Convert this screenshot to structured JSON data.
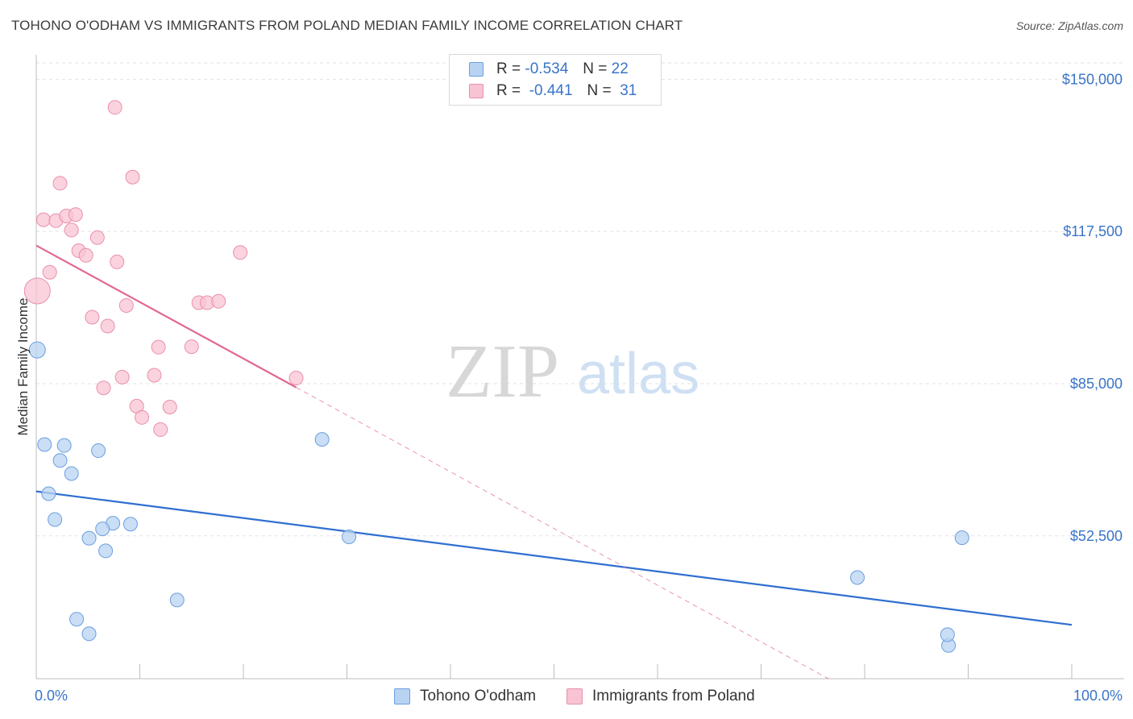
{
  "header": {
    "title": "TOHONO O'ODHAM VS IMMIGRANTS FROM POLAND MEDIAN FAMILY INCOME CORRELATION CHART",
    "source": "Source: ZipAtlas.com"
  },
  "legend_stats": {
    "r_label": "R =",
    "n_label": "N =",
    "rows": [
      {
        "r": "-0.534",
        "n": "22"
      },
      {
        "r": "-0.441",
        "n": "31"
      }
    ]
  },
  "watermark": {
    "zip": "ZIP",
    "atlas": "atlas"
  },
  "colors": {
    "tohono_fill": "#b8d3f2",
    "tohono_stroke": "#6b9fe0",
    "tohono_line": "#2f6fd0",
    "poland_fill": "#f8c4d3",
    "poland_stroke": "#ea8fab",
    "poland_line": "#e26890",
    "axis_text": "#3a74c8",
    "grid": "#e2e2e2"
  },
  "chart_data": {
    "type": "scatter",
    "title": "TOHONO O'ODHAM VS IMMIGRANTS FROM POLAND MEDIAN FAMILY INCOME CORRELATION CHART",
    "xlabel": "",
    "ylabel": "Median Family Income",
    "xlim": [
      0,
      100
    ],
    "ylim": [
      22000,
      153500
    ],
    "x_tick_labels": [
      "0.0%",
      "100.0%"
    ],
    "y_ticks": [
      52500,
      85000,
      117500,
      150000
    ],
    "y_tick_labels": [
      "$52,500",
      "$85,000",
      "$117,500",
      "$150,000"
    ],
    "grid": true,
    "legend_position": "top-center",
    "series": [
      {
        "name": "Tohono O'odham",
        "points": [
          [
            0.1,
            92200
          ],
          [
            0.8,
            72000
          ],
          [
            2.3,
            68600
          ],
          [
            2.7,
            71800
          ],
          [
            3.4,
            65800
          ],
          [
            6.0,
            70700
          ],
          [
            1.2,
            61500
          ],
          [
            1.8,
            56000
          ],
          [
            7.4,
            55200
          ],
          [
            5.1,
            52000
          ],
          [
            6.4,
            54000
          ],
          [
            9.1,
            55000
          ],
          [
            6.7,
            49300
          ],
          [
            30.2,
            52300
          ],
          [
            27.6,
            73100
          ],
          [
            13.6,
            38800
          ],
          [
            3.9,
            34700
          ],
          [
            5.1,
            31600
          ],
          [
            89.4,
            52100
          ],
          [
            79.3,
            43600
          ],
          [
            88.1,
            29100
          ],
          [
            88.0,
            31400
          ]
        ],
        "trend": {
          "x0": 0,
          "y0": 62000,
          "x1": 100,
          "y1": 33500
        }
      },
      {
        "name": "Immigrants from Poland",
        "points": [
          [
            7.6,
            144000
          ],
          [
            2.3,
            127800
          ],
          [
            9.3,
            129100
          ],
          [
            0.7,
            120000
          ],
          [
            1.9,
            119800
          ],
          [
            2.9,
            120800
          ],
          [
            3.8,
            121100
          ],
          [
            3.4,
            117800
          ],
          [
            5.9,
            116200
          ],
          [
            4.1,
            113400
          ],
          [
            4.8,
            112400
          ],
          [
            7.8,
            111000
          ],
          [
            19.7,
            113000
          ],
          [
            1.3,
            108800
          ],
          [
            0.1,
            104800
          ],
          [
            15.7,
            102300
          ],
          [
            16.5,
            102300
          ],
          [
            17.6,
            102600
          ],
          [
            8.7,
            101700
          ],
          [
            5.4,
            99200
          ],
          [
            6.9,
            97300
          ],
          [
            11.8,
            92800
          ],
          [
            15.0,
            92900
          ],
          [
            8.3,
            86400
          ],
          [
            11.4,
            86800
          ],
          [
            25.1,
            86200
          ],
          [
            6.5,
            84100
          ],
          [
            9.7,
            80200
          ],
          [
            12.9,
            80000
          ],
          [
            10.2,
            77800
          ],
          [
            12.0,
            75200
          ]
        ],
        "trend": {
          "x0": 0,
          "y0": 114500,
          "x1": 25.1,
          "y1": 84200,
          "dashed_to_x": 76.5,
          "dashed_to_y": 22000
        }
      }
    ]
  },
  "bottom_legend": {
    "items": [
      {
        "label": "Tohono O'odham"
      },
      {
        "label": "Immigrants from Poland"
      }
    ]
  }
}
